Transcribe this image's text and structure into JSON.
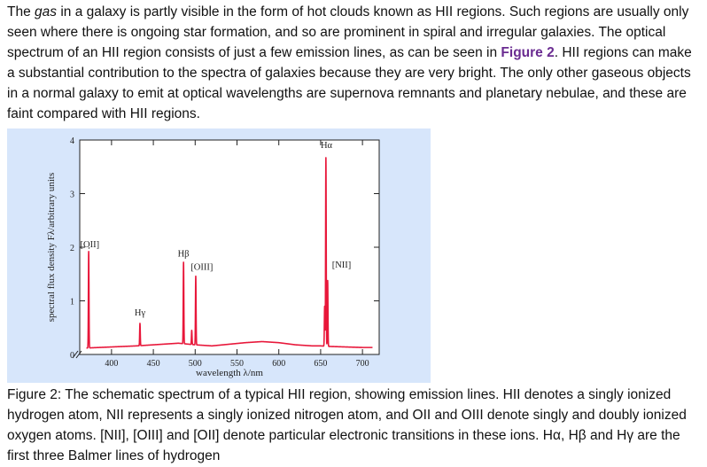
{
  "paragraph": {
    "part1": "The ",
    "gas": "gas",
    "part2": " in a galaxy is partly visible in the form of hot clouds known as HII regions. Such regions are usually only seen where there is ongoing star formation, and so are prominent in spiral and irregular galaxies. The optical spectrum of an HII region consists of just a few emission lines, as can be seen in ",
    "figure_link": "Figure 2",
    "part3": ". HII regions can make a substantial contribution to the spectra of galaxies because they are very bright. The only other gaseous objects in a normal galaxy to emit at optical wavelengths are supernova remnants and planetary nebulae, and these are faint compared with HII regions."
  },
  "caption": "Figure 2: The schematic spectrum of a typical HII region, showing emission lines. HII denotes a singly ionized hydrogen atom, NII represents a singly ionized nitrogen atom, and OII and OIII denote singly and doubly ionized oxygen atoms. [NII], [OIII] and [OII] denote particular electronic transitions in these ions. Hα, Hβ and Hγ are the first three Balmer lines of hydrogen",
  "colors": {
    "spectrum": "#e8173a",
    "figure_bg": "#d7e6fb",
    "link": "#6a2c91"
  },
  "chart_data": {
    "type": "line",
    "xlabel": "wavelength λ/nm",
    "ylabel": "spectral flux density Fλ/arbitrary units",
    "xlim": [
      362,
      720
    ],
    "ylim": [
      0,
      4
    ],
    "x_ticks": [
      {
        "value": 400,
        "label": "400"
      },
      {
        "value": 450,
        "label": "450"
      },
      {
        "value": 500,
        "label": "500"
      },
      {
        "value": 550,
        "label": "550"
      },
      {
        "value": 600,
        "label": "600"
      },
      {
        "value": 650,
        "label": "650"
      },
      {
        "value": 700,
        "label": "700"
      }
    ],
    "y_ticks": [
      {
        "value": 0,
        "label": "0"
      },
      {
        "value": 1,
        "label": "1"
      },
      {
        "value": 2,
        "label": "2"
      },
      {
        "value": 3,
        "label": "3"
      },
      {
        "value": 4,
        "label": "4"
      }
    ],
    "continuum": {
      "x": [
        370,
        400,
        430,
        460,
        480,
        500,
        520,
        540,
        560,
        580,
        600,
        620,
        640,
        650,
        660,
        680,
        700,
        712
      ],
      "y": [
        0.12,
        0.14,
        0.16,
        0.19,
        0.21,
        0.18,
        0.16,
        0.19,
        0.22,
        0.24,
        0.22,
        0.18,
        0.16,
        0.16,
        0.15,
        0.14,
        0.13,
        0.13
      ]
    },
    "emission_lines": [
      {
        "name": "[OII]",
        "x": 372.7,
        "peak": 1.92
      },
      {
        "name": "Hγ",
        "x": 434.0,
        "peak": 0.58
      },
      {
        "name": "Hβ",
        "x": 486.1,
        "peak": 1.72
      },
      {
        "name": "[OIII]",
        "x": 495.9,
        "peak": 0.45
      },
      {
        "name": "[OIII]",
        "x": 500.7,
        "peak": 1.46
      },
      {
        "name": "[NII]",
        "x": 654.8,
        "peak": 0.9
      },
      {
        "name": "Hα",
        "x": 656.3,
        "peak": 3.67
      },
      {
        "name": "[NII]",
        "x": 658.4,
        "peak": 1.38
      }
    ],
    "annotations": [
      {
        "text": "[OII]",
        "x": 374,
        "y": 2.0
      },
      {
        "text": "Hγ",
        "x": 434,
        "y": 0.73
      },
      {
        "text": "Hβ",
        "x": 486,
        "y": 1.83
      },
      {
        "text": "[OIII]",
        "x": 508,
        "y": 1.58
      },
      {
        "text": "Hα",
        "x": 657,
        "y": 3.85
      },
      {
        "text": "[NII]",
        "x": 675,
        "y": 1.62
      }
    ]
  }
}
